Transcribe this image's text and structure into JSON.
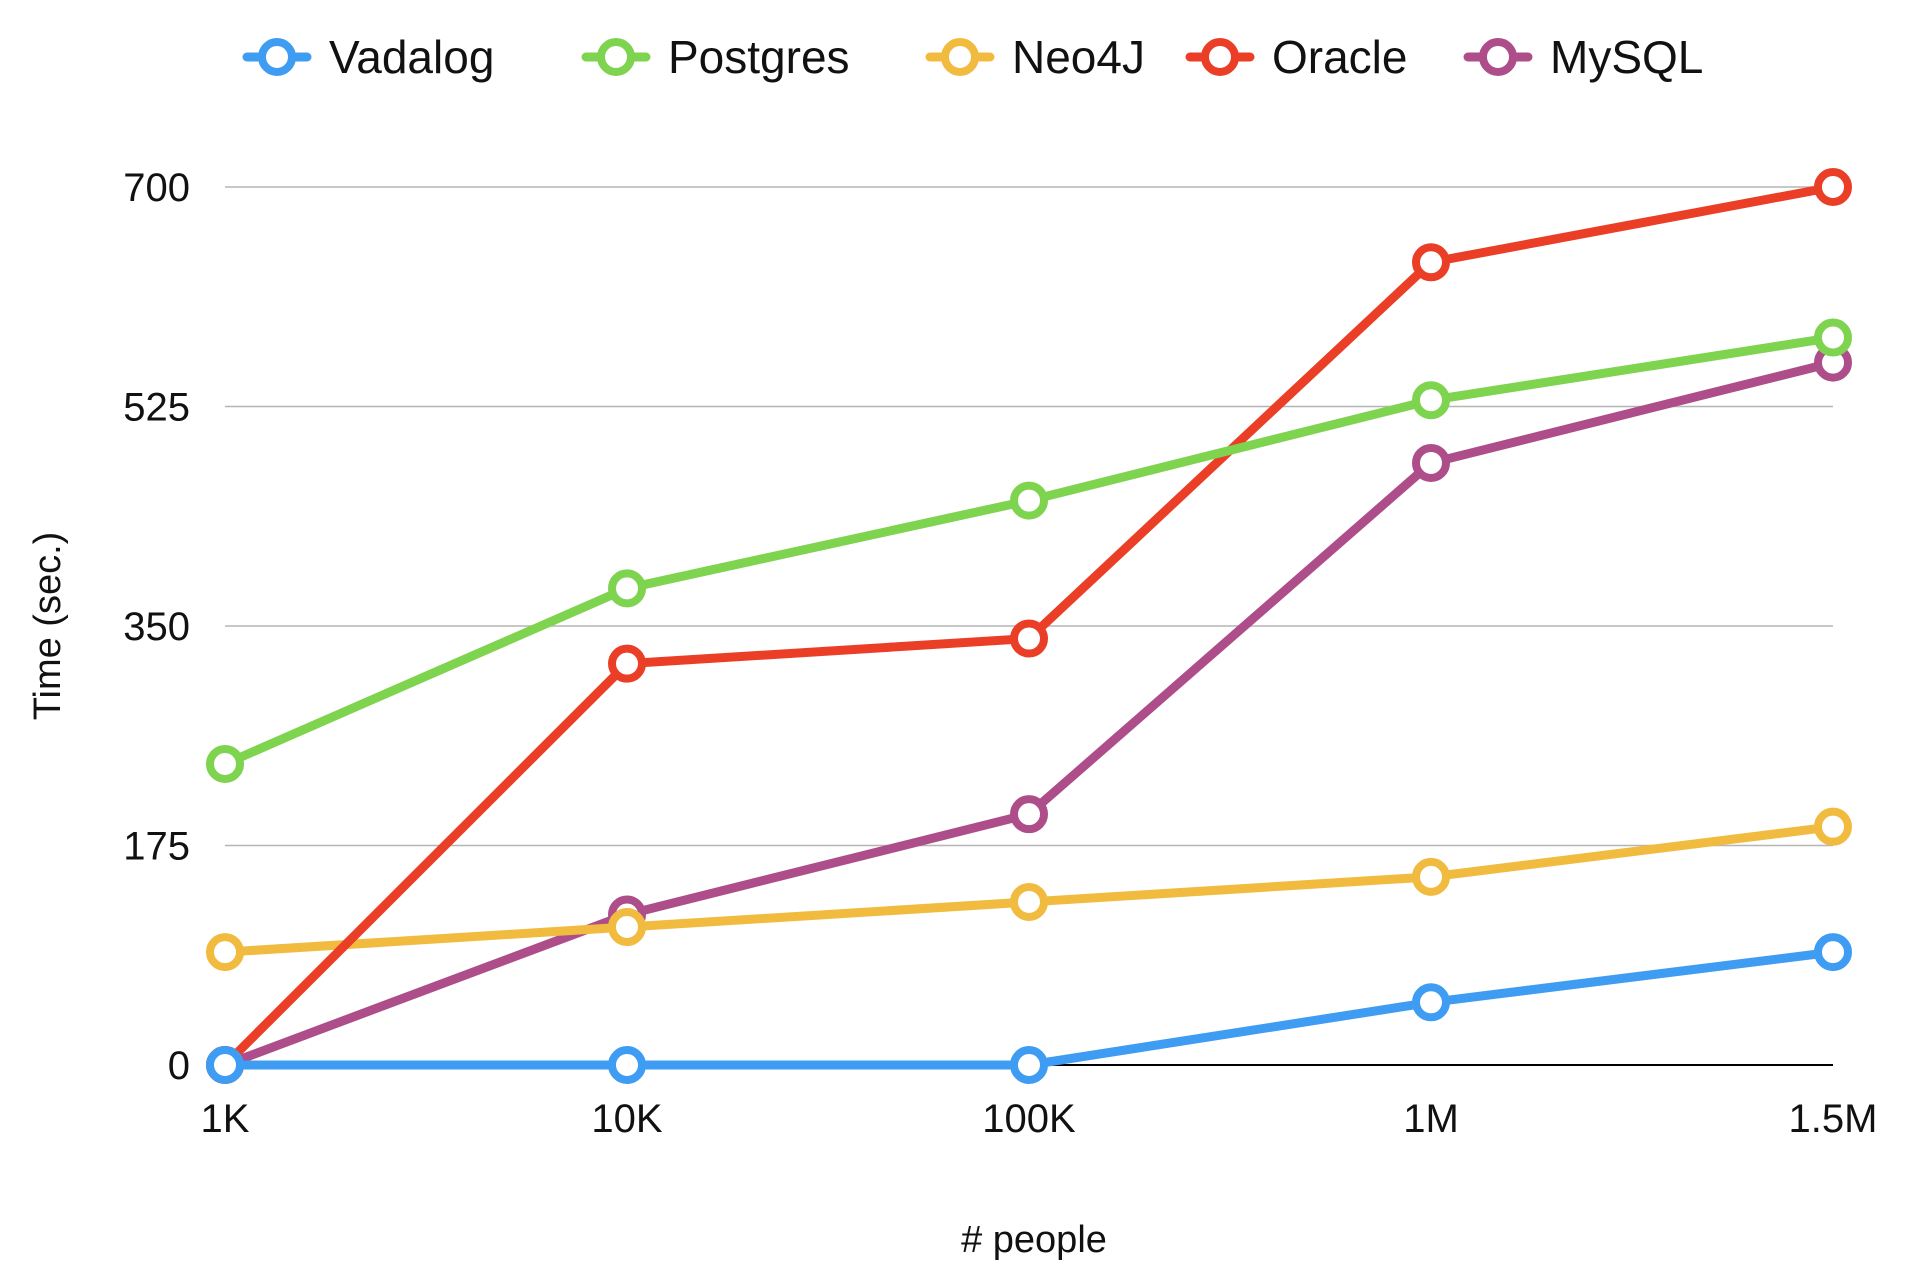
{
  "chart_data": {
    "type": "line",
    "title": "",
    "xlabel": "# people",
    "ylabel": "Time (sec.)",
    "categories": [
      "1K",
      "10K",
      "100K",
      "1M",
      "1.5M"
    ],
    "ylim": [
      0,
      700
    ],
    "yticks": [
      "0",
      "175",
      "350",
      "525",
      "700"
    ],
    "ytick_values": [
      0,
      175,
      350,
      525,
      700
    ],
    "grid": true,
    "legend_position": "top",
    "series": [
      {
        "name": "Vadalog",
        "color": "#3f9cf3",
        "values": [
          0,
          0,
          0,
          50,
          90
        ]
      },
      {
        "name": "Postgres",
        "color": "#7ed34f",
        "values": [
          240,
          380,
          450,
          530,
          580
        ]
      },
      {
        "name": "Neo4J",
        "color": "#f0bb3f",
        "values": [
          90,
          110,
          130,
          150,
          190
        ]
      },
      {
        "name": "Oracle",
        "color": "#ea3f26",
        "values": [
          0,
          320,
          340,
          640,
          700
        ]
      },
      {
        "name": "MySQL",
        "color": "#ad4d89",
        "values": [
          0,
          120,
          200,
          480,
          560
        ]
      }
    ],
    "draw_order": [
      4,
      2,
      3,
      1,
      0
    ]
  }
}
